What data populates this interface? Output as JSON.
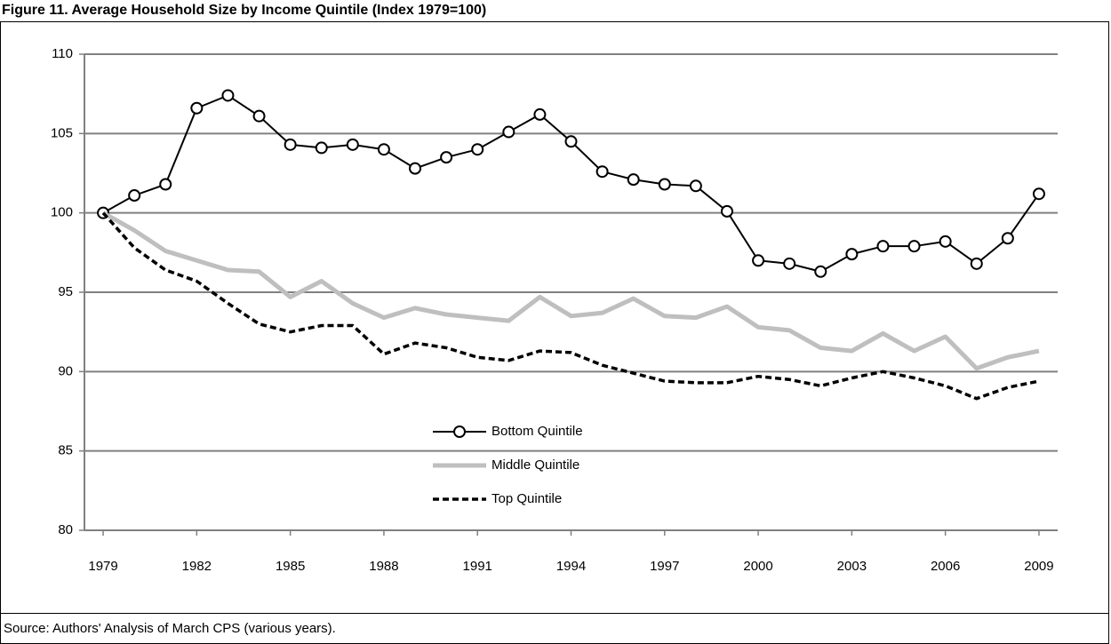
{
  "chart_data": {
    "type": "line",
    "title": "Figure 11. Average Household Size by Income Quintile (Index 1979=100)",
    "source": "Source: Authors' Analysis of March CPS (various years).",
    "x": [
      1979,
      1980,
      1981,
      1982,
      1983,
      1984,
      1985,
      1986,
      1987,
      1988,
      1989,
      1990,
      1991,
      1992,
      1993,
      1994,
      1995,
      1996,
      1997,
      1998,
      1999,
      2000,
      2001,
      2002,
      2003,
      2004,
      2005,
      2006,
      2007,
      2008,
      2009
    ],
    "xlim": [
      1978.4,
      2009.6
    ],
    "xticks": [
      1979,
      1982,
      1985,
      1988,
      1991,
      1994,
      1997,
      2000,
      2003,
      2006,
      2009
    ],
    "ylim": [
      80,
      110
    ],
    "yticks": [
      80,
      85,
      90,
      95,
      100,
      105,
      110
    ],
    "grid": true,
    "legend": "lower center",
    "series": [
      {
        "name": "Bottom Quintile",
        "color": "#000000",
        "marker": "circle",
        "linestyle": "solid",
        "values": [
          100,
          101.1,
          101.8,
          106.6,
          107.4,
          106.1,
          104.3,
          104.1,
          104.3,
          104.0,
          102.8,
          103.5,
          104.0,
          105.1,
          106.2,
          104.5,
          102.6,
          102.1,
          101.8,
          101.7,
          100.1,
          97.0,
          96.8,
          96.3,
          97.4,
          97.9,
          97.9,
          98.2,
          96.8,
          98.4,
          101.2
        ]
      },
      {
        "name": "Middle Quintile",
        "color": "#bfbfbf",
        "marker": "none",
        "linestyle": "thick",
        "values": [
          100,
          98.9,
          97.6,
          97.0,
          96.4,
          96.3,
          94.7,
          95.7,
          94.3,
          93.4,
          94.0,
          93.6,
          93.4,
          93.2,
          94.7,
          93.5,
          93.7,
          94.6,
          93.5,
          93.4,
          94.1,
          92.8,
          92.6,
          91.5,
          91.3,
          92.4,
          91.3,
          92.2,
          90.2,
          90.9,
          91.3
        ]
      },
      {
        "name": "Top Quintile",
        "color": "#000000",
        "marker": "none",
        "linestyle": "dashed",
        "values": [
          100,
          97.8,
          96.4,
          95.7,
          94.3,
          93.0,
          92.5,
          92.9,
          92.9,
          91.1,
          91.8,
          91.5,
          90.9,
          90.7,
          91.3,
          91.2,
          90.4,
          89.9,
          89.4,
          89.3,
          89.3,
          89.7,
          89.5,
          89.1,
          89.6,
          90.0,
          89.6,
          89.1,
          88.3,
          89.0,
          89.4
        ]
      }
    ]
  }
}
